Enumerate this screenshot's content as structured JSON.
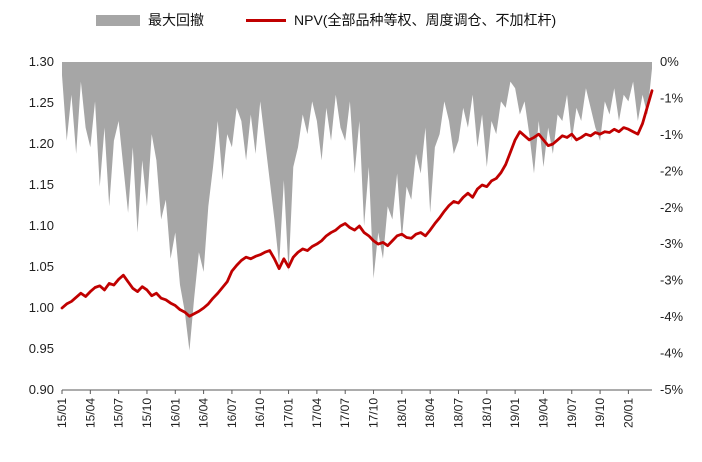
{
  "legend": {
    "items": [
      {
        "label": "最大回撤",
        "marker": "area-swatch",
        "color": "#a6a6a6"
      },
      {
        "label": "NPV(全部品种等权、周度调仓、不加杠杆)",
        "marker": "line-swatch",
        "color": "#c00000"
      }
    ]
  },
  "chart_data": {
    "type": "area",
    "subtype": "inverted-drawdown-area-with-line",
    "title": "",
    "x_start": "2015/01",
    "x_end": "2020/03",
    "points_per_month": 2,
    "x_tick_labels": [
      "15/01",
      "15/04",
      "15/07",
      "15/10",
      "16/01",
      "16/04",
      "16/07",
      "16/10",
      "17/01",
      "17/04",
      "17/07",
      "17/10",
      "18/01",
      "18/04",
      "18/07",
      "18/10",
      "19/01",
      "19/04",
      "19/07",
      "19/10",
      "20/01"
    ],
    "x_tick_every_months": 3,
    "left_axis": {
      "min": 0.9,
      "max": 1.3,
      "step": 0.05,
      "tick_labels": [
        "1.30",
        "1.25",
        "1.20",
        "1.15",
        "1.10",
        "1.05",
        "1.00",
        "0.95",
        "0.90"
      ]
    },
    "right_axis": {
      "max_pct": 0,
      "min_pct": -5,
      "tick_labels": [
        "0%",
        "-1%",
        "-1%",
        "-2%",
        "-2%",
        "-3%",
        "-3%",
        "-4%",
        "-4%",
        "-5%"
      ]
    },
    "grid": false,
    "legend_position": "top",
    "series": [
      {
        "name": "最大回撤",
        "type": "area",
        "axis": "right",
        "unit": "%",
        "color": "#a6a6a6",
        "values": [
          -0.2,
          -1.2,
          -0.5,
          -1.4,
          -0.3,
          -1.0,
          -1.3,
          -0.6,
          -1.9,
          -1.0,
          -2.2,
          -1.2,
          -0.9,
          -1.6,
          -2.3,
          -1.3,
          -2.6,
          -1.5,
          -2.2,
          -1.1,
          -1.5,
          -2.4,
          -2.1,
          -3.0,
          -2.6,
          -3.4,
          -3.8,
          -4.4,
          -3.6,
          -2.9,
          -3.2,
          -2.2,
          -1.6,
          -0.9,
          -1.8,
          -1.1,
          -1.3,
          -0.7,
          -0.9,
          -1.5,
          -0.8,
          -1.4,
          -0.6,
          -1.2,
          -1.8,
          -2.4,
          -3.1,
          -1.8,
          -3.2,
          -1.6,
          -1.3,
          -0.8,
          -1.1,
          -0.6,
          -0.9,
          -1.5,
          -0.7,
          -1.2,
          -0.5,
          -1.0,
          -1.2,
          -0.6,
          -1.7,
          -0.9,
          -2.5,
          -1.6,
          -3.3,
          -2.6,
          -3.0,
          -2.2,
          -2.4,
          -1.7,
          -2.7,
          -1.9,
          -2.1,
          -1.4,
          -1.7,
          -1.0,
          -2.3,
          -1.3,
          -1.1,
          -0.6,
          -0.9,
          -1.4,
          -1.2,
          -0.7,
          -1.0,
          -0.5,
          -1.3,
          -0.8,
          -1.6,
          -0.9,
          -1.1,
          -0.6,
          -0.7,
          -0.3,
          -0.4,
          -0.8,
          -0.6,
          -1.1,
          -1.7,
          -0.9,
          -1.6,
          -1.0,
          -1.4,
          -0.8,
          -0.9,
          -0.5,
          -1.2,
          -0.7,
          -0.9,
          -0.4,
          -0.7,
          -1.0,
          -1.2,
          -0.6,
          -0.8,
          -0.4,
          -0.9,
          -0.5,
          -0.6,
          -0.3,
          -0.9,
          -0.5,
          -0.8,
          -0.1
        ]
      },
      {
        "name": "NPV(全部品种等权、周度调仓、不加杠杆)",
        "type": "line",
        "axis": "left",
        "color": "#c00000",
        "values": [
          1.0,
          1.005,
          1.008,
          1.013,
          1.018,
          1.014,
          1.02,
          1.025,
          1.027,
          1.022,
          1.03,
          1.028,
          1.035,
          1.04,
          1.032,
          1.024,
          1.02,
          1.026,
          1.022,
          1.015,
          1.018,
          1.012,
          1.01,
          1.006,
          1.003,
          0.998,
          0.995,
          0.99,
          0.993,
          0.996,
          1.0,
          1.005,
          1.012,
          1.018,
          1.025,
          1.032,
          1.045,
          1.052,
          1.058,
          1.062,
          1.06,
          1.063,
          1.065,
          1.068,
          1.07,
          1.06,
          1.048,
          1.06,
          1.05,
          1.062,
          1.068,
          1.072,
          1.07,
          1.075,
          1.078,
          1.082,
          1.088,
          1.092,
          1.095,
          1.1,
          1.103,
          1.098,
          1.095,
          1.1,
          1.092,
          1.088,
          1.082,
          1.078,
          1.08,
          1.076,
          1.082,
          1.088,
          1.09,
          1.086,
          1.085,
          1.09,
          1.092,
          1.088,
          1.095,
          1.103,
          1.11,
          1.118,
          1.125,
          1.13,
          1.128,
          1.135,
          1.14,
          1.135,
          1.145,
          1.15,
          1.148,
          1.155,
          1.158,
          1.165,
          1.175,
          1.19,
          1.205,
          1.215,
          1.21,
          1.205,
          1.208,
          1.212,
          1.205,
          1.198,
          1.2,
          1.205,
          1.21,
          1.208,
          1.212,
          1.205,
          1.208,
          1.212,
          1.21,
          1.214,
          1.212,
          1.215,
          1.214,
          1.218,
          1.215,
          1.22,
          1.218,
          1.215,
          1.212,
          1.225,
          1.245,
          1.265
        ]
      }
    ]
  },
  "colors": {
    "background": "#ffffff",
    "axis_line": "#595959",
    "text": "#1f1f1f",
    "drawdown_fill": "#a6a6a6",
    "npv_line": "#c00000"
  }
}
